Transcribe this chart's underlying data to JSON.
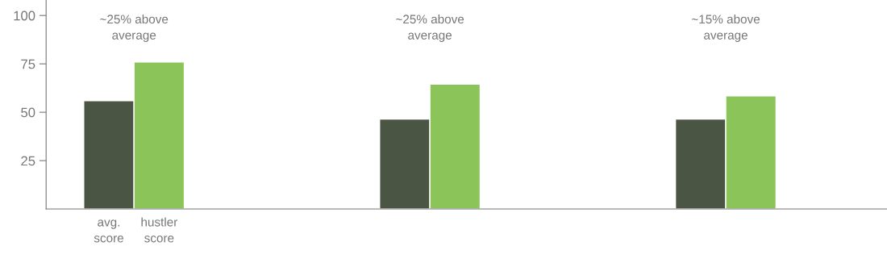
{
  "chart_data": {
    "type": "bar",
    "categories": [
      null,
      null,
      null
    ],
    "series": [
      {
        "name": "avg.\nscore",
        "color": "#4a5643",
        "values": [
          56,
          46.5,
          46.5
        ]
      },
      {
        "name": "hustler\nscore",
        "color": "#8bc55a",
        "values": [
          76,
          64.5,
          58.5
        ]
      }
    ],
    "ylim": [
      0,
      108
    ],
    "yticks": [
      25,
      50,
      75,
      100
    ],
    "grid": false,
    "legend": false,
    "annotations": [
      "~25% above\naverage",
      "~25% above\naverage",
      "~15% above\naverage"
    ]
  }
}
